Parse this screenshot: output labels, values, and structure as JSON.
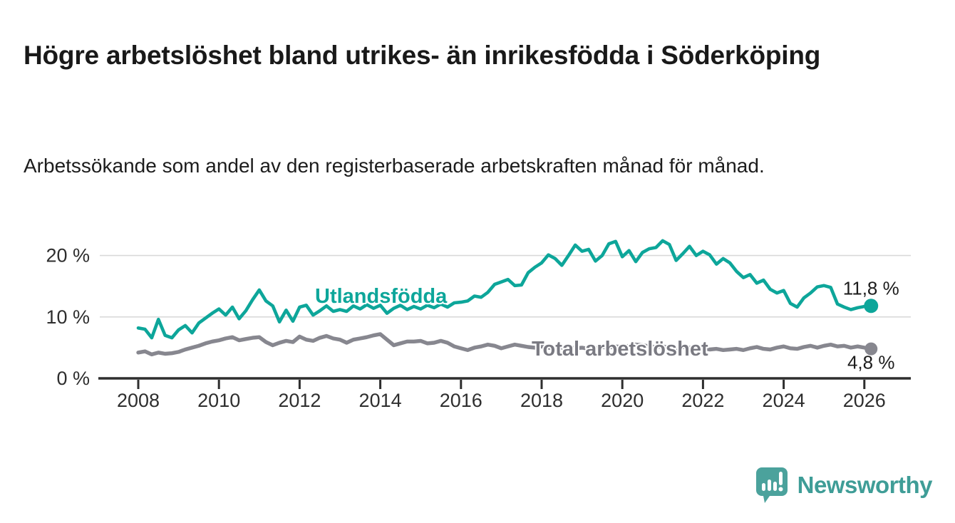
{
  "header": {
    "title": "Högre arbetslöshet bland utrikes- än inrikesfödda i Söderköping",
    "subtitle": "Arbetssökande som andel av den registerbaserade arbetskraften månad för månad."
  },
  "chart_data": {
    "type": "line",
    "title": "Högre arbetslöshet bland utrikes- än inrikesfödda i Söderköping",
    "subtitle": "Arbetssökande som andel av den registerbaserade arbetskraften månad för månad.",
    "unit": "%",
    "grid": "horizontal",
    "legend": "inline-labels",
    "x_start": 2008.0,
    "x_step": 0.1666667,
    "x_ticks": [
      2008,
      2010,
      2012,
      2014,
      2016,
      2018,
      2020,
      2022,
      2024,
      2026
    ],
    "y_ticks": [
      {
        "v": 0,
        "label": "0 %"
      },
      {
        "v": 10,
        "label": "10 %"
      },
      {
        "v": 20,
        "label": "20 %"
      }
    ],
    "ylim": [
      0,
      23.5
    ],
    "xlabel": "",
    "ylabel": "",
    "series": [
      {
        "name": "Utlandsfödda",
        "color": "#0da69a",
        "label_color": "#0da69a",
        "end_label": "11,8 %",
        "end_value": 11.8,
        "values": [
          8.2,
          8.0,
          6.6,
          9.6,
          7.0,
          6.6,
          7.9,
          8.6,
          7.4,
          9.0,
          9.8,
          10.6,
          11.3,
          10.3,
          11.6,
          9.7,
          11.0,
          12.8,
          14.4,
          12.6,
          11.8,
          9.2,
          11.1,
          9.3,
          11.6,
          11.9,
          10.3,
          11.0,
          11.8,
          10.9,
          11.2,
          10.9,
          11.8,
          11.3,
          12.0,
          11.4,
          11.9,
          10.6,
          11.4,
          11.9,
          11.2,
          11.7,
          11.3,
          11.9,
          11.5,
          12.1,
          11.6,
          12.3,
          12.4,
          12.6,
          13.4,
          13.2,
          14.0,
          15.3,
          15.7,
          16.1,
          15.1,
          15.2,
          17.2,
          18.1,
          18.8,
          20.1,
          19.5,
          18.4,
          20.0,
          21.7,
          20.7,
          21.0,
          19.1,
          20.0,
          21.9,
          22.3,
          19.8,
          20.8,
          19.0,
          20.5,
          21.1,
          21.3,
          22.4,
          21.8,
          19.2,
          20.3,
          21.5,
          20.0,
          20.7,
          20.1,
          18.6,
          19.5,
          18.8,
          17.4,
          16.4,
          16.9,
          15.5,
          16.0,
          14.5,
          13.9,
          14.3,
          12.2,
          11.6,
          13.1,
          13.9,
          14.9,
          15.1,
          14.8,
          12.1,
          11.6,
          11.2,
          11.5,
          11.7,
          11.8
        ]
      },
      {
        "name": "Total arbetslöshet",
        "color": "#87878f",
        "label_color": "#7a7a82",
        "end_label": "4,8 %",
        "end_value": 4.8,
        "values": [
          4.2,
          4.4,
          3.9,
          4.2,
          4.0,
          4.1,
          4.3,
          4.7,
          5.0,
          5.3,
          5.7,
          6.0,
          6.2,
          6.5,
          6.7,
          6.2,
          6.4,
          6.6,
          6.7,
          5.9,
          5.4,
          5.8,
          6.1,
          5.9,
          6.8,
          6.3,
          6.1,
          6.6,
          6.9,
          6.5,
          6.3,
          5.8,
          6.3,
          6.5,
          6.7,
          7.0,
          7.2,
          6.3,
          5.4,
          5.7,
          6.0,
          6.0,
          6.1,
          5.7,
          5.8,
          6.1,
          5.8,
          5.2,
          4.9,
          4.6,
          5.0,
          5.2,
          5.5,
          5.3,
          4.9,
          5.2,
          5.5,
          5.3,
          5.1,
          5.0,
          5.2,
          5.0,
          4.8,
          5.0,
          5.1,
          4.9,
          5.0,
          4.8,
          4.9,
          5.1,
          5.0,
          5.2,
          5.1,
          5.3,
          5.5,
          5.4,
          5.2,
          5.1,
          5.2,
          5.0,
          4.9,
          5.1,
          5.0,
          4.8,
          4.9,
          4.7,
          4.8,
          4.6,
          4.7,
          4.8,
          4.6,
          4.9,
          5.1,
          4.8,
          4.7,
          5.0,
          5.2,
          4.9,
          4.8,
          5.1,
          5.3,
          5.0,
          5.3,
          5.5,
          5.2,
          5.3,
          5.0,
          5.2,
          5.0,
          4.8
        ]
      }
    ],
    "colors": {
      "axis": "#2e2e2e",
      "gridline": "#d9d9d9",
      "tick_label": "#2e2e2e",
      "annotation": "#1c1c1c"
    }
  },
  "footer": {
    "brand": "Newsworthy",
    "brand_color": "#3f9d97",
    "logo_color": "#4ba29c"
  }
}
